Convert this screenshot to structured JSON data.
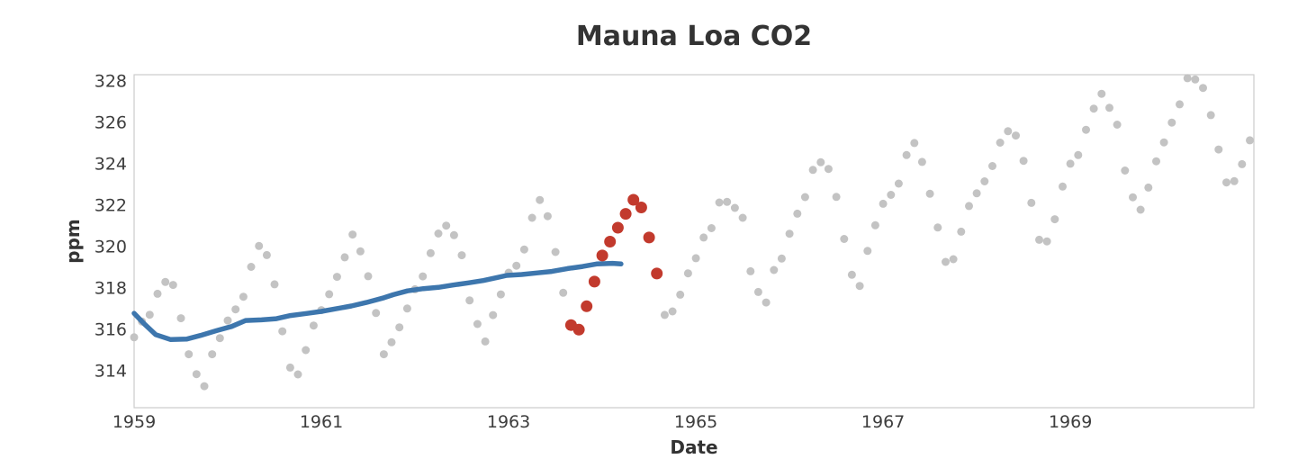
{
  "chart_data": {
    "type": "scatter",
    "title": "Mauna Loa CO2",
    "xlabel": "Date",
    "ylabel": "ppm",
    "xlim": [
      1959.0,
      1970.96
    ],
    "ylim": [
      312.22,
      328.3
    ],
    "xticks": [
      1959,
      1961,
      1963,
      1965,
      1967,
      1969
    ],
    "yticks": [
      314,
      316,
      318,
      320,
      322,
      324,
      326,
      328
    ],
    "grid": false,
    "legend": "none",
    "colors": {
      "monthly_points": "#c3c3c3",
      "highlight_points": "#c23a2d",
      "trend_line": "#3d76ad",
      "spine": "#cccccc",
      "text": "#333333",
      "tick_text": "#3d3d3d"
    },
    "series": [
      {
        "name": "monthly-co2-ppm",
        "kind": "scatter",
        "color": "#c3c3c3",
        "radius": 4.5,
        "points": [
          [
            1959.0,
            315.62
          ],
          [
            1959.0833,
            316.38
          ],
          [
            1959.1667,
            316.71
          ],
          [
            1959.25,
            317.72
          ],
          [
            1959.3333,
            318.29
          ],
          [
            1959.4167,
            318.15
          ],
          [
            1959.5,
            316.54
          ],
          [
            1959.5833,
            314.8
          ],
          [
            1959.6667,
            313.84
          ],
          [
            1959.75,
            313.26
          ],
          [
            1959.8333,
            314.8
          ],
          [
            1959.9167,
            315.58
          ],
          [
            1960.0,
            316.43
          ],
          [
            1960.0833,
            316.97
          ],
          [
            1960.1667,
            317.58
          ],
          [
            1960.25,
            319.02
          ],
          [
            1960.3333,
            320.03
          ],
          [
            1960.4167,
            319.59
          ],
          [
            1960.5,
            318.18
          ],
          [
            1960.5833,
            315.91
          ],
          [
            1960.6667,
            314.16
          ],
          [
            1960.75,
            313.83
          ],
          [
            1960.8333,
            315.0
          ],
          [
            1960.9167,
            316.19
          ],
          [
            1961.0,
            316.93
          ],
          [
            1961.0833,
            317.7
          ],
          [
            1961.1667,
            318.54
          ],
          [
            1961.25,
            319.48
          ],
          [
            1961.3333,
            320.58
          ],
          [
            1961.4167,
            319.77
          ],
          [
            1961.5,
            318.57
          ],
          [
            1961.5833,
            316.79
          ],
          [
            1961.6667,
            314.8
          ],
          [
            1961.75,
            315.38
          ],
          [
            1961.8333,
            316.1
          ],
          [
            1961.9167,
            317.01
          ],
          [
            1962.0,
            317.94
          ],
          [
            1962.0833,
            318.56
          ],
          [
            1962.1667,
            319.68
          ],
          [
            1962.25,
            320.63
          ],
          [
            1962.3333,
            321.01
          ],
          [
            1962.4167,
            320.55
          ],
          [
            1962.5,
            319.58
          ],
          [
            1962.5833,
            317.4
          ],
          [
            1962.6667,
            316.26
          ],
          [
            1962.75,
            315.42
          ],
          [
            1962.8333,
            316.69
          ],
          [
            1962.9167,
            317.69
          ],
          [
            1963.0,
            318.74
          ],
          [
            1963.0833,
            319.08
          ],
          [
            1963.1667,
            319.86
          ],
          [
            1963.25,
            321.39
          ],
          [
            1963.3333,
            322.25
          ],
          [
            1963.4167,
            321.47
          ],
          [
            1963.5,
            319.74
          ],
          [
            1963.5833,
            317.77
          ],
          [
            1964.6667,
            316.7
          ],
          [
            1964.75,
            316.87
          ],
          [
            1964.8333,
            317.68
          ],
          [
            1964.9167,
            318.71
          ],
          [
            1965.0,
            319.44
          ],
          [
            1965.0833,
            320.44
          ],
          [
            1965.1667,
            320.89
          ],
          [
            1965.25,
            322.13
          ],
          [
            1965.3333,
            322.16
          ],
          [
            1965.4167,
            321.87
          ],
          [
            1965.5,
            321.39
          ],
          [
            1965.5833,
            318.81
          ],
          [
            1965.6667,
            317.81
          ],
          [
            1965.75,
            317.3
          ],
          [
            1965.8333,
            318.87
          ],
          [
            1965.9167,
            319.42
          ],
          [
            1966.0,
            320.62
          ],
          [
            1966.0833,
            321.59
          ],
          [
            1966.1667,
            322.39
          ],
          [
            1966.25,
            323.7
          ],
          [
            1966.3333,
            324.07
          ],
          [
            1966.4167,
            323.75
          ],
          [
            1966.5,
            322.4
          ],
          [
            1966.5833,
            320.37
          ],
          [
            1966.6667,
            318.64
          ],
          [
            1966.75,
            318.1
          ],
          [
            1966.8333,
            319.79
          ],
          [
            1966.9167,
            321.03
          ],
          [
            1967.0,
            322.07
          ],
          [
            1967.0833,
            322.5
          ],
          [
            1967.1667,
            323.04
          ],
          [
            1967.25,
            324.42
          ],
          [
            1967.3333,
            325.0
          ],
          [
            1967.4167,
            324.09
          ],
          [
            1967.5,
            322.55
          ],
          [
            1967.5833,
            320.92
          ],
          [
            1967.6667,
            319.26
          ],
          [
            1967.75,
            319.39
          ],
          [
            1967.8333,
            320.72
          ],
          [
            1967.9167,
            321.96
          ],
          [
            1968.0,
            322.57
          ],
          [
            1968.0833,
            323.15
          ],
          [
            1968.1667,
            323.89
          ],
          [
            1968.25,
            325.02
          ],
          [
            1968.3333,
            325.57
          ],
          [
            1968.4167,
            325.36
          ],
          [
            1968.5,
            324.14
          ],
          [
            1968.5833,
            322.11
          ],
          [
            1968.6667,
            320.33
          ],
          [
            1968.75,
            320.25
          ],
          [
            1968.8333,
            321.32
          ],
          [
            1968.9167,
            322.9
          ],
          [
            1969.0,
            324.0
          ],
          [
            1969.0833,
            324.42
          ],
          [
            1969.1667,
            325.64
          ],
          [
            1969.25,
            326.66
          ],
          [
            1969.3333,
            327.38
          ],
          [
            1969.4167,
            326.7
          ],
          [
            1969.5,
            325.89
          ],
          [
            1969.5833,
            323.67
          ],
          [
            1969.6667,
            322.38
          ],
          [
            1969.75,
            321.78
          ],
          [
            1969.8333,
            322.85
          ],
          [
            1969.9167,
            324.12
          ],
          [
            1970.0,
            325.03
          ],
          [
            1970.0833,
            325.99
          ],
          [
            1970.1667,
            326.87
          ],
          [
            1970.25,
            328.13
          ],
          [
            1970.3333,
            328.07
          ],
          [
            1970.4167,
            327.66
          ],
          [
            1970.5,
            326.35
          ],
          [
            1970.5833,
            324.69
          ],
          [
            1970.6667,
            323.1
          ],
          [
            1970.75,
            323.16
          ],
          [
            1970.8333,
            323.98
          ],
          [
            1970.9167,
            325.13
          ]
        ]
      },
      {
        "name": "highlighted-window",
        "kind": "scatter",
        "color": "#c23a2d",
        "radius": 6.5,
        "points": [
          [
            1963.6667,
            316.21
          ],
          [
            1963.75,
            315.99
          ],
          [
            1963.8333,
            317.12
          ],
          [
            1963.9167,
            318.31
          ],
          [
            1964.0,
            319.57
          ],
          [
            1964.0833,
            320.24
          ],
          [
            1964.1667,
            320.91
          ],
          [
            1964.25,
            321.58
          ],
          [
            1964.3333,
            322.26
          ],
          [
            1964.4167,
            321.89
          ],
          [
            1964.5,
            320.44
          ],
          [
            1964.5833,
            318.7
          ]
        ]
      },
      {
        "name": "trend-line",
        "kind": "line",
        "color": "#3d76ad",
        "width": 5.5,
        "points": [
          [
            1959.0,
            316.78
          ],
          [
            1959.11,
            316.26
          ],
          [
            1959.23,
            315.75
          ],
          [
            1959.39,
            315.51
          ],
          [
            1959.56,
            315.53
          ],
          [
            1959.71,
            315.71
          ],
          [
            1959.88,
            315.94
          ],
          [
            1960.04,
            316.14
          ],
          [
            1960.19,
            316.43
          ],
          [
            1960.36,
            316.46
          ],
          [
            1960.52,
            316.52
          ],
          [
            1960.67,
            316.67
          ],
          [
            1960.84,
            316.77
          ],
          [
            1961.0,
            316.87
          ],
          [
            1961.15,
            316.99
          ],
          [
            1961.32,
            317.13
          ],
          [
            1961.48,
            317.3
          ],
          [
            1961.67,
            317.53
          ],
          [
            1961.77,
            317.68
          ],
          [
            1961.92,
            317.86
          ],
          [
            1962.09,
            317.97
          ],
          [
            1962.25,
            318.03
          ],
          [
            1962.4,
            318.14
          ],
          [
            1962.57,
            318.25
          ],
          [
            1962.73,
            318.36
          ],
          [
            1962.88,
            318.51
          ],
          [
            1962.98,
            318.61
          ],
          [
            1963.14,
            318.65
          ],
          [
            1963.31,
            318.73
          ],
          [
            1963.46,
            318.8
          ],
          [
            1963.63,
            318.94
          ],
          [
            1963.79,
            319.04
          ],
          [
            1963.94,
            319.16
          ],
          [
            1964.11,
            319.19
          ],
          [
            1964.2,
            319.16
          ]
        ]
      }
    ]
  }
}
